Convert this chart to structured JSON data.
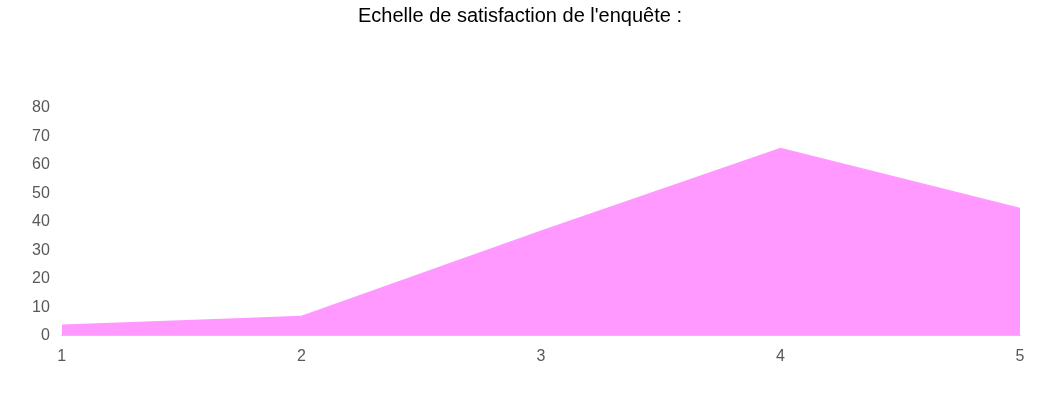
{
  "chart_data": {
    "type": "area",
    "title": "Echelle de satisfaction de l'enquête :",
    "categories": [
      "1",
      "2",
      "3",
      "4",
      "5"
    ],
    "series": [
      {
        "color": "#ff99ff",
        "values": [
          4,
          7,
          37,
          66,
          45
        ]
      }
    ],
    "ylim": [
      0,
      80
    ],
    "yticks": [
      0,
      10,
      20,
      30,
      40,
      50,
      60,
      70,
      80
    ],
    "grid": false,
    "legend": false
  }
}
